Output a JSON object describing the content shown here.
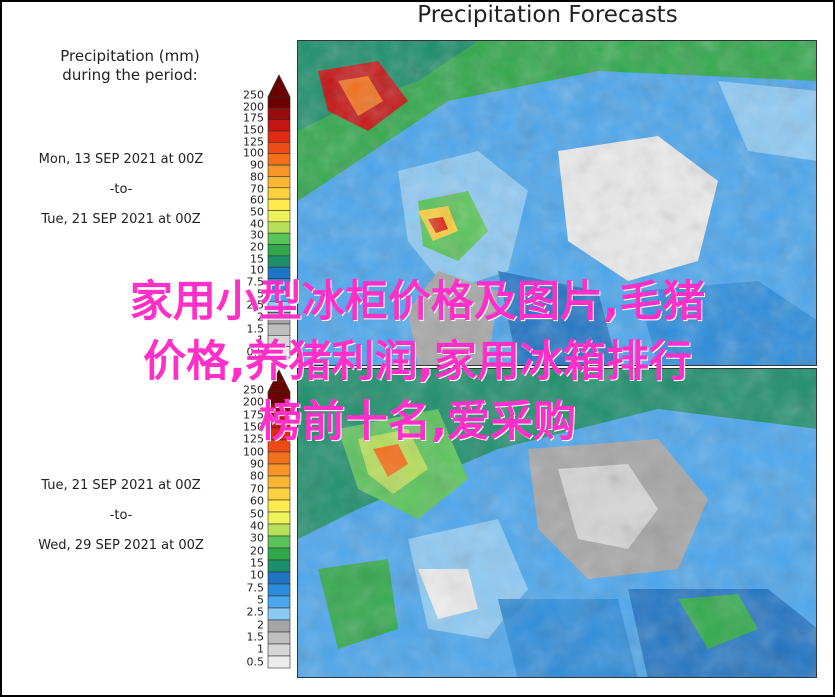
{
  "title": "Precipitation Forecasts",
  "legend": {
    "heading_line1": "Precipitation (mm)",
    "heading_line2": "during the period:",
    "ticks_upper": [
      "250",
      "200",
      "175",
      "150",
      "125",
      "100",
      "90",
      "80",
      "70",
      "60",
      "50",
      "40",
      "30",
      "20",
      "15",
      "10",
      "7.5",
      "5",
      "2.5",
      "2",
      "1.5",
      "1",
      "0.5"
    ],
    "ticks_lower": [
      "250",
      "200",
      "175",
      "150",
      "125",
      "100",
      "90",
      "80",
      "70",
      "60",
      "50",
      "40",
      "30",
      "20",
      "15",
      "10",
      "7.5",
      "5",
      "2.5",
      "2",
      "1.5",
      "1",
      "0.5"
    ],
    "colors": [
      "#6b0000",
      "#9b0a0a",
      "#c41414",
      "#e02a12",
      "#ef4a14",
      "#f4701a",
      "#f79626",
      "#fbb734",
      "#fcd03e",
      "#fdea4c",
      "#f0f25a",
      "#b8e05a",
      "#5ac45a",
      "#2fa84a",
      "#1c8e6a",
      "#1f74c4",
      "#2a8cdc",
      "#4aa6ee",
      "#8ccaf6",
      "#a6a6a6",
      "#bebebe",
      "#d6d6d6",
      "#ececec"
    ]
  },
  "periods": [
    {
      "start": "Mon, 13 SEP 2021 at 00Z",
      "to": "-to-",
      "end": "Tue, 21 SEP 2021 at 00Z"
    },
    {
      "start": "Tue, 21 SEP 2021 at 00Z",
      "to": "-to-",
      "end": "Wed, 29 SEP 2021 at 00Z"
    }
  ],
  "overlay_text": [
    "家用小型冰柜价格及图片,毛猪",
    "价格,养猪利润,家用冰箱排行",
    "榜前十名,爱采购"
  ]
}
